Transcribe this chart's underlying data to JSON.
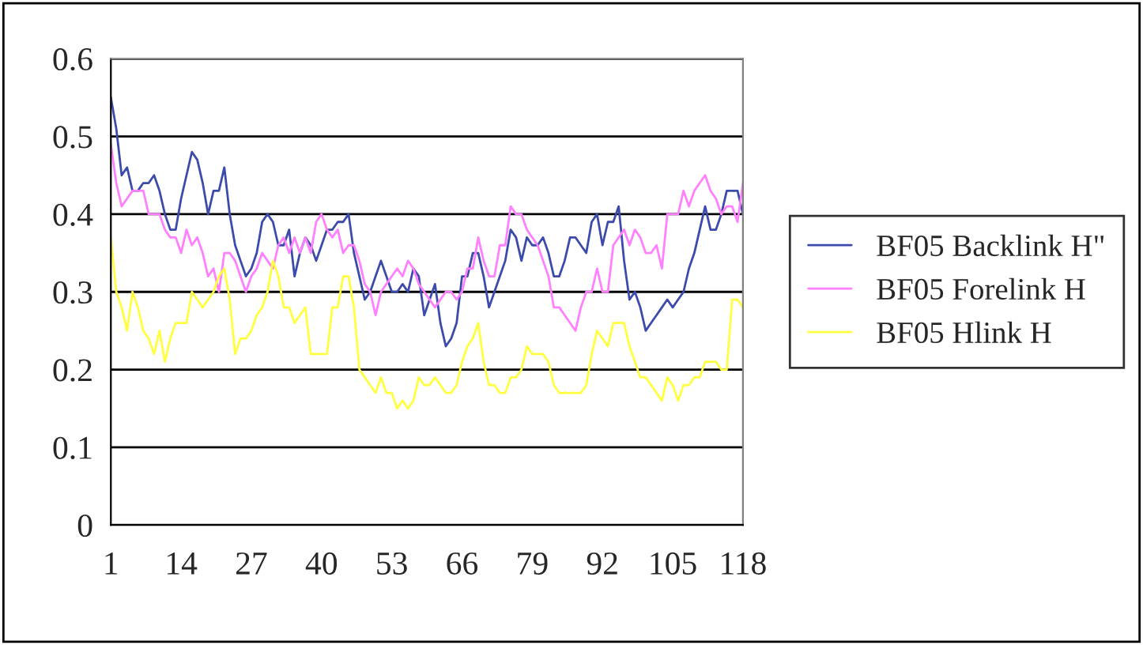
{
  "chart_data": {
    "type": "line",
    "categories": [
      "1",
      null,
      null,
      null,
      null,
      null,
      null,
      null,
      null,
      null,
      null,
      null,
      null,
      "14",
      null,
      null,
      null,
      null,
      null,
      null,
      null,
      null,
      null,
      null,
      null,
      null,
      "27",
      null,
      null,
      null,
      null,
      null,
      null,
      null,
      null,
      null,
      null,
      null,
      null,
      "40",
      null,
      null,
      null,
      null,
      null,
      null,
      null,
      null,
      null,
      null,
      null,
      null,
      "53",
      null,
      null,
      null,
      null,
      null,
      null,
      null,
      null,
      null,
      null,
      null,
      null,
      "66",
      null,
      null,
      null,
      null,
      null,
      null,
      null,
      null,
      null,
      null,
      null,
      null,
      "79",
      null,
      null,
      null,
      null,
      null,
      null,
      null,
      null,
      null,
      null,
      null,
      null,
      "92",
      null,
      null,
      null,
      null,
      null,
      null,
      null,
      null,
      null,
      null,
      null,
      null,
      "105",
      null,
      null,
      null,
      null,
      null,
      null,
      null,
      null,
      null,
      null,
      null,
      null,
      "118"
    ],
    "series": [
      {
        "name": "BF05 Backlink H\"",
        "color": "#3c4bab",
        "values": [
          0.55,
          0.51,
          0.45,
          0.46,
          0.43,
          0.43,
          0.44,
          0.44,
          0.45,
          0.43,
          0.4,
          0.38,
          0.38,
          0.42,
          0.45,
          0.48,
          0.47,
          0.44,
          0.4,
          0.43,
          0.43,
          0.46,
          0.4,
          0.36,
          0.34,
          0.32,
          0.33,
          0.35,
          0.39,
          0.4,
          0.39,
          0.36,
          0.36,
          0.38,
          0.32,
          0.35,
          0.37,
          0.36,
          0.34,
          0.36,
          0.38,
          0.38,
          0.39,
          0.39,
          0.4,
          0.35,
          0.32,
          0.29,
          0.3,
          0.32,
          0.34,
          0.32,
          0.3,
          0.3,
          0.31,
          0.3,
          0.33,
          0.32,
          0.27,
          0.29,
          0.31,
          0.26,
          0.23,
          0.24,
          0.26,
          0.32,
          0.32,
          0.35,
          0.35,
          0.32,
          0.28,
          0.3,
          0.32,
          0.34,
          0.38,
          0.37,
          0.34,
          0.37,
          0.36,
          0.36,
          0.37,
          0.35,
          0.32,
          0.32,
          0.34,
          0.37,
          0.37,
          0.36,
          0.35,
          0.39,
          0.4,
          0.36,
          0.39,
          0.39,
          0.41,
          0.34,
          0.29,
          0.3,
          0.28,
          0.25,
          0.26,
          0.27,
          0.28,
          0.29,
          0.28,
          0.29,
          0.3,
          0.33,
          0.35,
          0.38,
          0.41,
          0.38,
          0.38,
          0.4,
          0.43,
          0.43,
          0.43,
          0.4
        ]
      },
      {
        "name": "BF05 Forelink H",
        "color": "#ff80ff",
        "values": [
          0.49,
          0.44,
          0.41,
          0.42,
          0.43,
          0.43,
          0.43,
          0.4,
          0.4,
          0.4,
          0.38,
          0.37,
          0.37,
          0.35,
          0.38,
          0.36,
          0.37,
          0.35,
          0.32,
          0.33,
          0.3,
          0.35,
          0.35,
          0.34,
          0.32,
          0.3,
          0.32,
          0.33,
          0.35,
          0.34,
          0.33,
          0.36,
          0.37,
          0.35,
          0.37,
          0.35,
          0.37,
          0.35,
          0.39,
          0.4,
          0.38,
          0.37,
          0.38,
          0.35,
          0.36,
          0.36,
          0.34,
          0.31,
          0.3,
          0.27,
          0.3,
          0.31,
          0.32,
          0.33,
          0.32,
          0.34,
          0.33,
          0.31,
          0.3,
          0.29,
          0.28,
          0.29,
          0.3,
          0.3,
          0.29,
          0.3,
          0.33,
          0.33,
          0.37,
          0.34,
          0.32,
          0.32,
          0.36,
          0.36,
          0.41,
          0.4,
          0.4,
          0.38,
          0.37,
          0.36,
          0.34,
          0.32,
          0.28,
          0.28,
          0.27,
          0.26,
          0.25,
          0.28,
          0.3,
          0.3,
          0.33,
          0.3,
          0.3,
          0.36,
          0.37,
          0.38,
          0.36,
          0.38,
          0.37,
          0.35,
          0.35,
          0.36,
          0.33,
          0.4,
          0.4,
          0.4,
          0.43,
          0.41,
          0.43,
          0.44,
          0.45,
          0.43,
          0.42,
          0.4,
          0.41,
          0.41,
          0.39,
          0.44
        ]
      },
      {
        "name": "BF05 Hlink H",
        "color": "#ffff40",
        "values": [
          0.37,
          0.3,
          0.28,
          0.25,
          0.3,
          0.28,
          0.25,
          0.24,
          0.22,
          0.25,
          0.21,
          0.24,
          0.26,
          0.26,
          0.26,
          0.3,
          0.29,
          0.28,
          0.29,
          0.3,
          0.32,
          0.33,
          0.29,
          0.22,
          0.24,
          0.24,
          0.25,
          0.27,
          0.28,
          0.3,
          0.34,
          0.32,
          0.28,
          0.28,
          0.26,
          0.27,
          0.28,
          0.22,
          0.22,
          0.22,
          0.22,
          0.28,
          0.28,
          0.32,
          0.32,
          0.28,
          0.2,
          0.19,
          0.18,
          0.17,
          0.19,
          0.17,
          0.17,
          0.15,
          0.16,
          0.15,
          0.16,
          0.19,
          0.18,
          0.18,
          0.19,
          0.18,
          0.17,
          0.17,
          0.18,
          0.21,
          0.23,
          0.24,
          0.26,
          0.21,
          0.18,
          0.18,
          0.17,
          0.17,
          0.19,
          0.19,
          0.2,
          0.23,
          0.22,
          0.22,
          0.22,
          0.21,
          0.18,
          0.17,
          0.17,
          0.17,
          0.17,
          0.17,
          0.18,
          0.22,
          0.25,
          0.24,
          0.23,
          0.26,
          0.26,
          0.26,
          0.23,
          0.21,
          0.19,
          0.19,
          0.18,
          0.17,
          0.16,
          0.19,
          0.18,
          0.16,
          0.18,
          0.18,
          0.19,
          0.19,
          0.21,
          0.21,
          0.21,
          0.2,
          0.2,
          0.29,
          0.29,
          0.28
        ]
      }
    ],
    "ylim": [
      0,
      0.6
    ],
    "yticks": [
      0,
      0.1,
      0.2,
      0.3,
      0.4,
      0.5,
      0.6
    ],
    "grid": "y",
    "legend": "right",
    "line_style": "solid",
    "marker": "none"
  }
}
